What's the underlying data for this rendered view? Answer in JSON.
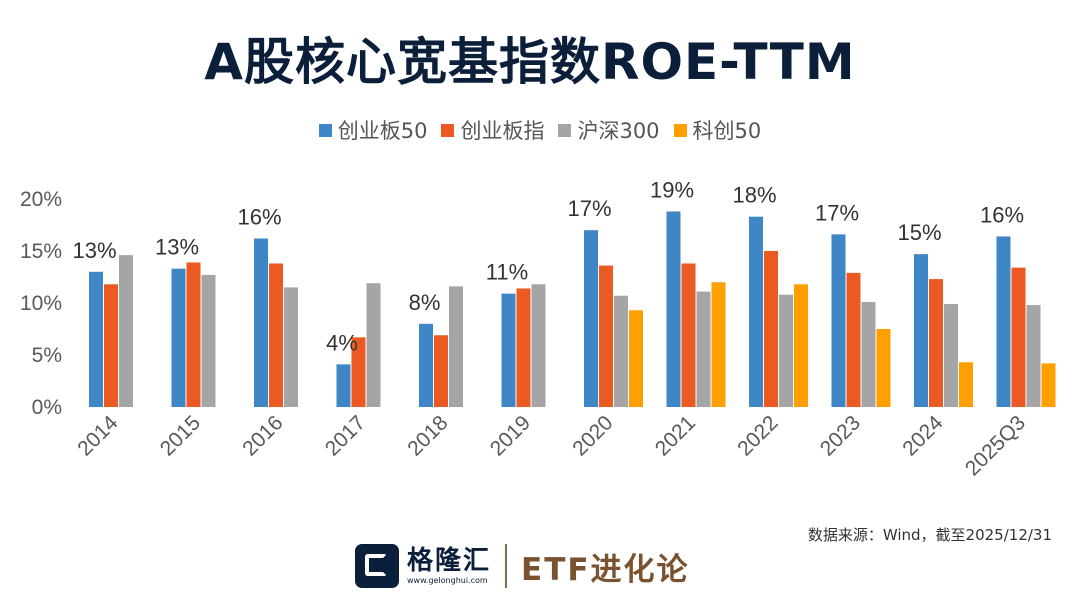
{
  "header": {
    "title": "A股核心宽基指数ROE-TTM"
  },
  "legend": [
    {
      "label": "创业板50",
      "color": "#3f86c6"
    },
    {
      "label": "创业板指",
      "color": "#ec5a24"
    },
    {
      "label": "沪深300",
      "color": "#a5a5a5"
    },
    {
      "label": "科创50",
      "color": "#ffa000"
    }
  ],
  "chart_data": {
    "type": "bar",
    "title": "A股核心宽基指数ROE-TTM",
    "categories": [
      "2014",
      "2015",
      "2016",
      "2017",
      "2018",
      "2019",
      "2020",
      "2021",
      "2022",
      "2023",
      "2024",
      "2025Q3"
    ],
    "series": [
      {
        "name": "创业板50",
        "color": "#3f86c6",
        "values": [
          13,
          13.3,
          16.2,
          4.1,
          8,
          10.9,
          17,
          18.8,
          18.3,
          16.6,
          14.7,
          16.4
        ]
      },
      {
        "name": "创业板指",
        "color": "#ec5a24",
        "values": [
          11.8,
          13.9,
          13.8,
          6.7,
          6.9,
          11.4,
          13.6,
          13.8,
          15,
          12.9,
          12.3,
          13.4
        ]
      },
      {
        "name": "沪深300",
        "color": "#a5a5a5",
        "values": [
          14.6,
          12.7,
          11.5,
          11.9,
          11.6,
          11.8,
          10.7,
          11.1,
          10.8,
          10.1,
          9.9,
          9.8
        ]
      },
      {
        "name": "科创50",
        "color": "#ffa000",
        "values": [
          null,
          null,
          null,
          null,
          null,
          null,
          9.3,
          12,
          11.8,
          7.5,
          4.3,
          4.2
        ]
      }
    ],
    "data_labels": [
      "13%",
      "13%",
      "16%",
      "4%",
      "8%",
      "11%",
      "17%",
      "19%",
      "18%",
      "17%",
      "15%",
      "16%"
    ],
    "y_ticks": [
      "0%",
      "5%",
      "10%",
      "15%",
      "20%"
    ],
    "ylim": [
      0,
      20
    ],
    "xlabel": "",
    "ylabel": "",
    "grid": false,
    "legend_position": "top"
  },
  "source": "数据来源：Wind，截至2025/12/31",
  "footer": {
    "logo_name": "格隆汇",
    "logo_url": "www.gelonghui.com",
    "brand": "ETF进化论"
  }
}
